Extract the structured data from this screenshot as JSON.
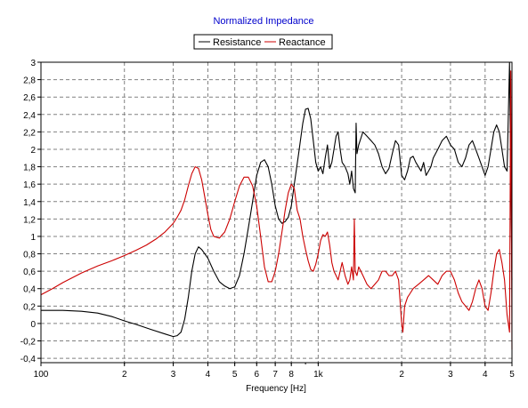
{
  "chart_data": {
    "type": "line",
    "title": "Normalized Impedance",
    "xlabel": "Frequency [Hz]",
    "ylabel": "",
    "xscale": "log",
    "xlim": [
      100,
      5000
    ],
    "ylim": [
      -0.45,
      3
    ],
    "grid": true,
    "legend_position": "top-center",
    "x_ticks": [
      {
        "value": 100,
        "label": "100"
      },
      {
        "value": 200,
        "label": "2"
      },
      {
        "value": 300,
        "label": "3"
      },
      {
        "value": 400,
        "label": "4"
      },
      {
        "value": 500,
        "label": "5"
      },
      {
        "value": 600,
        "label": "6"
      },
      {
        "value": 700,
        "label": "7"
      },
      {
        "value": 800,
        "label": "8"
      },
      {
        "value": 1000,
        "label": "1k"
      },
      {
        "value": 2000,
        "label": "2"
      },
      {
        "value": 3000,
        "label": "3"
      },
      {
        "value": 4000,
        "label": "4"
      },
      {
        "value": 5000,
        "label": "5"
      }
    ],
    "y_ticks": [
      {
        "value": 3,
        "label": "3"
      },
      {
        "value": 2.8,
        "label": "2,8"
      },
      {
        "value": 2.6,
        "label": "2,6"
      },
      {
        "value": 2.4,
        "label": "2,4"
      },
      {
        "value": 2.2,
        "label": "2,2"
      },
      {
        "value": 2,
        "label": "2"
      },
      {
        "value": 1.8,
        "label": "1,8"
      },
      {
        "value": 1.6,
        "label": "1,6"
      },
      {
        "value": 1.4,
        "label": "1,4"
      },
      {
        "value": 1.2,
        "label": "1,2"
      },
      {
        "value": 1,
        "label": "1"
      },
      {
        "value": 0.8,
        "label": "0,8"
      },
      {
        "value": 0.6,
        "label": "0,6"
      },
      {
        "value": 0.4,
        "label": "0,4"
      },
      {
        "value": 0.2,
        "label": "0,2"
      },
      {
        "value": 0,
        "label": "0"
      },
      {
        "value": -0.2,
        "label": "-0,2"
      },
      {
        "value": -0.4,
        "label": "-0,4"
      }
    ],
    "series": [
      {
        "name": "Resistance",
        "color": "#000000",
        "points": [
          [
            100,
            0.15
          ],
          [
            120,
            0.15
          ],
          [
            140,
            0.14
          ],
          [
            160,
            0.12
          ],
          [
            180,
            0.08
          ],
          [
            200,
            0.03
          ],
          [
            220,
            -0.01
          ],
          [
            250,
            -0.07
          ],
          [
            280,
            -0.12
          ],
          [
            300,
            -0.15
          ],
          [
            310,
            -0.14
          ],
          [
            320,
            -0.1
          ],
          [
            330,
            0.05
          ],
          [
            340,
            0.3
          ],
          [
            350,
            0.6
          ],
          [
            360,
            0.8
          ],
          [
            370,
            0.88
          ],
          [
            380,
            0.85
          ],
          [
            400,
            0.75
          ],
          [
            420,
            0.6
          ],
          [
            440,
            0.48
          ],
          [
            460,
            0.43
          ],
          [
            480,
            0.4
          ],
          [
            500,
            0.42
          ],
          [
            520,
            0.55
          ],
          [
            540,
            0.8
          ],
          [
            560,
            1.1
          ],
          [
            580,
            1.4
          ],
          [
            600,
            1.7
          ],
          [
            620,
            1.85
          ],
          [
            640,
            1.88
          ],
          [
            660,
            1.8
          ],
          [
            680,
            1.6
          ],
          [
            700,
            1.35
          ],
          [
            720,
            1.2
          ],
          [
            740,
            1.15
          ],
          [
            760,
            1.17
          ],
          [
            780,
            1.22
          ],
          [
            800,
            1.35
          ],
          [
            820,
            1.6
          ],
          [
            850,
            1.95
          ],
          [
            880,
            2.3
          ],
          [
            900,
            2.46
          ],
          [
            920,
            2.47
          ],
          [
            940,
            2.35
          ],
          [
            960,
            2.1
          ],
          [
            980,
            1.85
          ],
          [
            1000,
            1.75
          ],
          [
            1020,
            1.8
          ],
          [
            1040,
            1.72
          ],
          [
            1060,
            1.9
          ],
          [
            1080,
            2.05
          ],
          [
            1100,
            1.78
          ],
          [
            1120,
            1.85
          ],
          [
            1140,
            2.0
          ],
          [
            1160,
            2.15
          ],
          [
            1180,
            2.2
          ],
          [
            1200,
            2.0
          ],
          [
            1220,
            1.85
          ],
          [
            1250,
            1.8
          ],
          [
            1280,
            1.72
          ],
          [
            1300,
            1.6
          ],
          [
            1320,
            1.75
          ],
          [
            1340,
            1.55
          ],
          [
            1360,
            1.5
          ],
          [
            1370,
            2.3
          ],
          [
            1380,
            1.95
          ],
          [
            1400,
            2.05
          ],
          [
            1450,
            2.2
          ],
          [
            1500,
            2.15
          ],
          [
            1550,
            2.1
          ],
          [
            1600,
            2.05
          ],
          [
            1650,
            1.95
          ],
          [
            1700,
            1.8
          ],
          [
            1750,
            1.72
          ],
          [
            1800,
            1.78
          ],
          [
            1850,
            1.95
          ],
          [
            1900,
            2.1
          ],
          [
            1950,
            2.05
          ],
          [
            2000,
            1.7
          ],
          [
            2050,
            1.65
          ],
          [
            2100,
            1.75
          ],
          [
            2150,
            1.9
          ],
          [
            2200,
            1.92
          ],
          [
            2250,
            1.85
          ],
          [
            2300,
            1.8
          ],
          [
            2350,
            1.75
          ],
          [
            2400,
            1.85
          ],
          [
            2450,
            1.7
          ],
          [
            2500,
            1.75
          ],
          [
            2550,
            1.8
          ],
          [
            2600,
            1.9
          ],
          [
            2700,
            2.0
          ],
          [
            2800,
            2.1
          ],
          [
            2900,
            2.15
          ],
          [
            3000,
            2.05
          ],
          [
            3100,
            2.0
          ],
          [
            3200,
            1.85
          ],
          [
            3300,
            1.8
          ],
          [
            3400,
            1.9
          ],
          [
            3500,
            2.05
          ],
          [
            3600,
            2.1
          ],
          [
            3700,
            2.0
          ],
          [
            3800,
            1.9
          ],
          [
            3900,
            1.8
          ],
          [
            4000,
            1.7
          ],
          [
            4100,
            1.8
          ],
          [
            4200,
            2.0
          ],
          [
            4300,
            2.2
          ],
          [
            4400,
            2.28
          ],
          [
            4500,
            2.2
          ],
          [
            4600,
            2.0
          ],
          [
            4700,
            1.8
          ],
          [
            4800,
            1.75
          ],
          [
            4900,
            3.0
          ],
          [
            5000,
            0.5
          ]
        ]
      },
      {
        "name": "Reactance",
        "color": "#cc0000",
        "points": [
          [
            100,
            0.33
          ],
          [
            110,
            0.4
          ],
          [
            120,
            0.47
          ],
          [
            140,
            0.58
          ],
          [
            160,
            0.66
          ],
          [
            180,
            0.72
          ],
          [
            200,
            0.78
          ],
          [
            220,
            0.84
          ],
          [
            240,
            0.9
          ],
          [
            260,
            0.97
          ],
          [
            280,
            1.05
          ],
          [
            300,
            1.15
          ],
          [
            310,
            1.22
          ],
          [
            320,
            1.3
          ],
          [
            330,
            1.42
          ],
          [
            340,
            1.58
          ],
          [
            350,
            1.72
          ],
          [
            360,
            1.8
          ],
          [
            370,
            1.78
          ],
          [
            380,
            1.65
          ],
          [
            390,
            1.45
          ],
          [
            400,
            1.25
          ],
          [
            410,
            1.08
          ],
          [
            420,
            1.0
          ],
          [
            440,
            0.98
          ],
          [
            460,
            1.05
          ],
          [
            480,
            1.2
          ],
          [
            500,
            1.4
          ],
          [
            520,
            1.58
          ],
          [
            540,
            1.68
          ],
          [
            560,
            1.68
          ],
          [
            580,
            1.58
          ],
          [
            600,
            1.35
          ],
          [
            620,
            1.0
          ],
          [
            640,
            0.65
          ],
          [
            660,
            0.48
          ],
          [
            680,
            0.48
          ],
          [
            700,
            0.6
          ],
          [
            720,
            0.8
          ],
          [
            740,
            1.05
          ],
          [
            760,
            1.3
          ],
          [
            780,
            1.5
          ],
          [
            800,
            1.6
          ],
          [
            820,
            1.55
          ],
          [
            840,
            1.3
          ],
          [
            860,
            1.2
          ],
          [
            880,
            1.0
          ],
          [
            900,
            0.85
          ],
          [
            920,
            0.72
          ],
          [
            940,
            0.62
          ],
          [
            960,
            0.6
          ],
          [
            980,
            0.68
          ],
          [
            1000,
            0.8
          ],
          [
            1020,
            0.95
          ],
          [
            1040,
            1.02
          ],
          [
            1060,
            1.0
          ],
          [
            1080,
            1.05
          ],
          [
            1100,
            0.9
          ],
          [
            1120,
            0.7
          ],
          [
            1140,
            0.6
          ],
          [
            1160,
            0.55
          ],
          [
            1180,
            0.5
          ],
          [
            1200,
            0.6
          ],
          [
            1220,
            0.7
          ],
          [
            1250,
            0.55
          ],
          [
            1280,
            0.45
          ],
          [
            1300,
            0.5
          ],
          [
            1320,
            0.65
          ],
          [
            1340,
            0.5
          ],
          [
            1350,
            1.2
          ],
          [
            1360,
            0.6
          ],
          [
            1380,
            0.55
          ],
          [
            1400,
            0.65
          ],
          [
            1450,
            0.55
          ],
          [
            1500,
            0.45
          ],
          [
            1550,
            0.4
          ],
          [
            1600,
            0.45
          ],
          [
            1650,
            0.5
          ],
          [
            1700,
            0.6
          ],
          [
            1750,
            0.6
          ],
          [
            1800,
            0.55
          ],
          [
            1850,
            0.55
          ],
          [
            1900,
            0.6
          ],
          [
            1950,
            0.5
          ],
          [
            2000,
            0.0
          ],
          [
            2020,
            -0.1
          ],
          [
            2050,
            0.2
          ],
          [
            2100,
            0.3
          ],
          [
            2150,
            0.35
          ],
          [
            2200,
            0.4
          ],
          [
            2300,
            0.45
          ],
          [
            2400,
            0.5
          ],
          [
            2500,
            0.55
          ],
          [
            2600,
            0.5
          ],
          [
            2700,
            0.45
          ],
          [
            2800,
            0.55
          ],
          [
            2900,
            0.6
          ],
          [
            3000,
            0.6
          ],
          [
            3100,
            0.5
          ],
          [
            3200,
            0.35
          ],
          [
            3300,
            0.25
          ],
          [
            3400,
            0.2
          ],
          [
            3500,
            0.15
          ],
          [
            3600,
            0.25
          ],
          [
            3700,
            0.4
          ],
          [
            3800,
            0.5
          ],
          [
            3900,
            0.4
          ],
          [
            4000,
            0.2
          ],
          [
            4100,
            0.15
          ],
          [
            4200,
            0.35
          ],
          [
            4300,
            0.6
          ],
          [
            4400,
            0.8
          ],
          [
            4500,
            0.85
          ],
          [
            4600,
            0.7
          ],
          [
            4700,
            0.5
          ],
          [
            4800,
            0.1
          ],
          [
            4900,
            -0.1
          ],
          [
            4950,
            2.9
          ],
          [
            5000,
            -0.3
          ]
        ]
      }
    ]
  }
}
